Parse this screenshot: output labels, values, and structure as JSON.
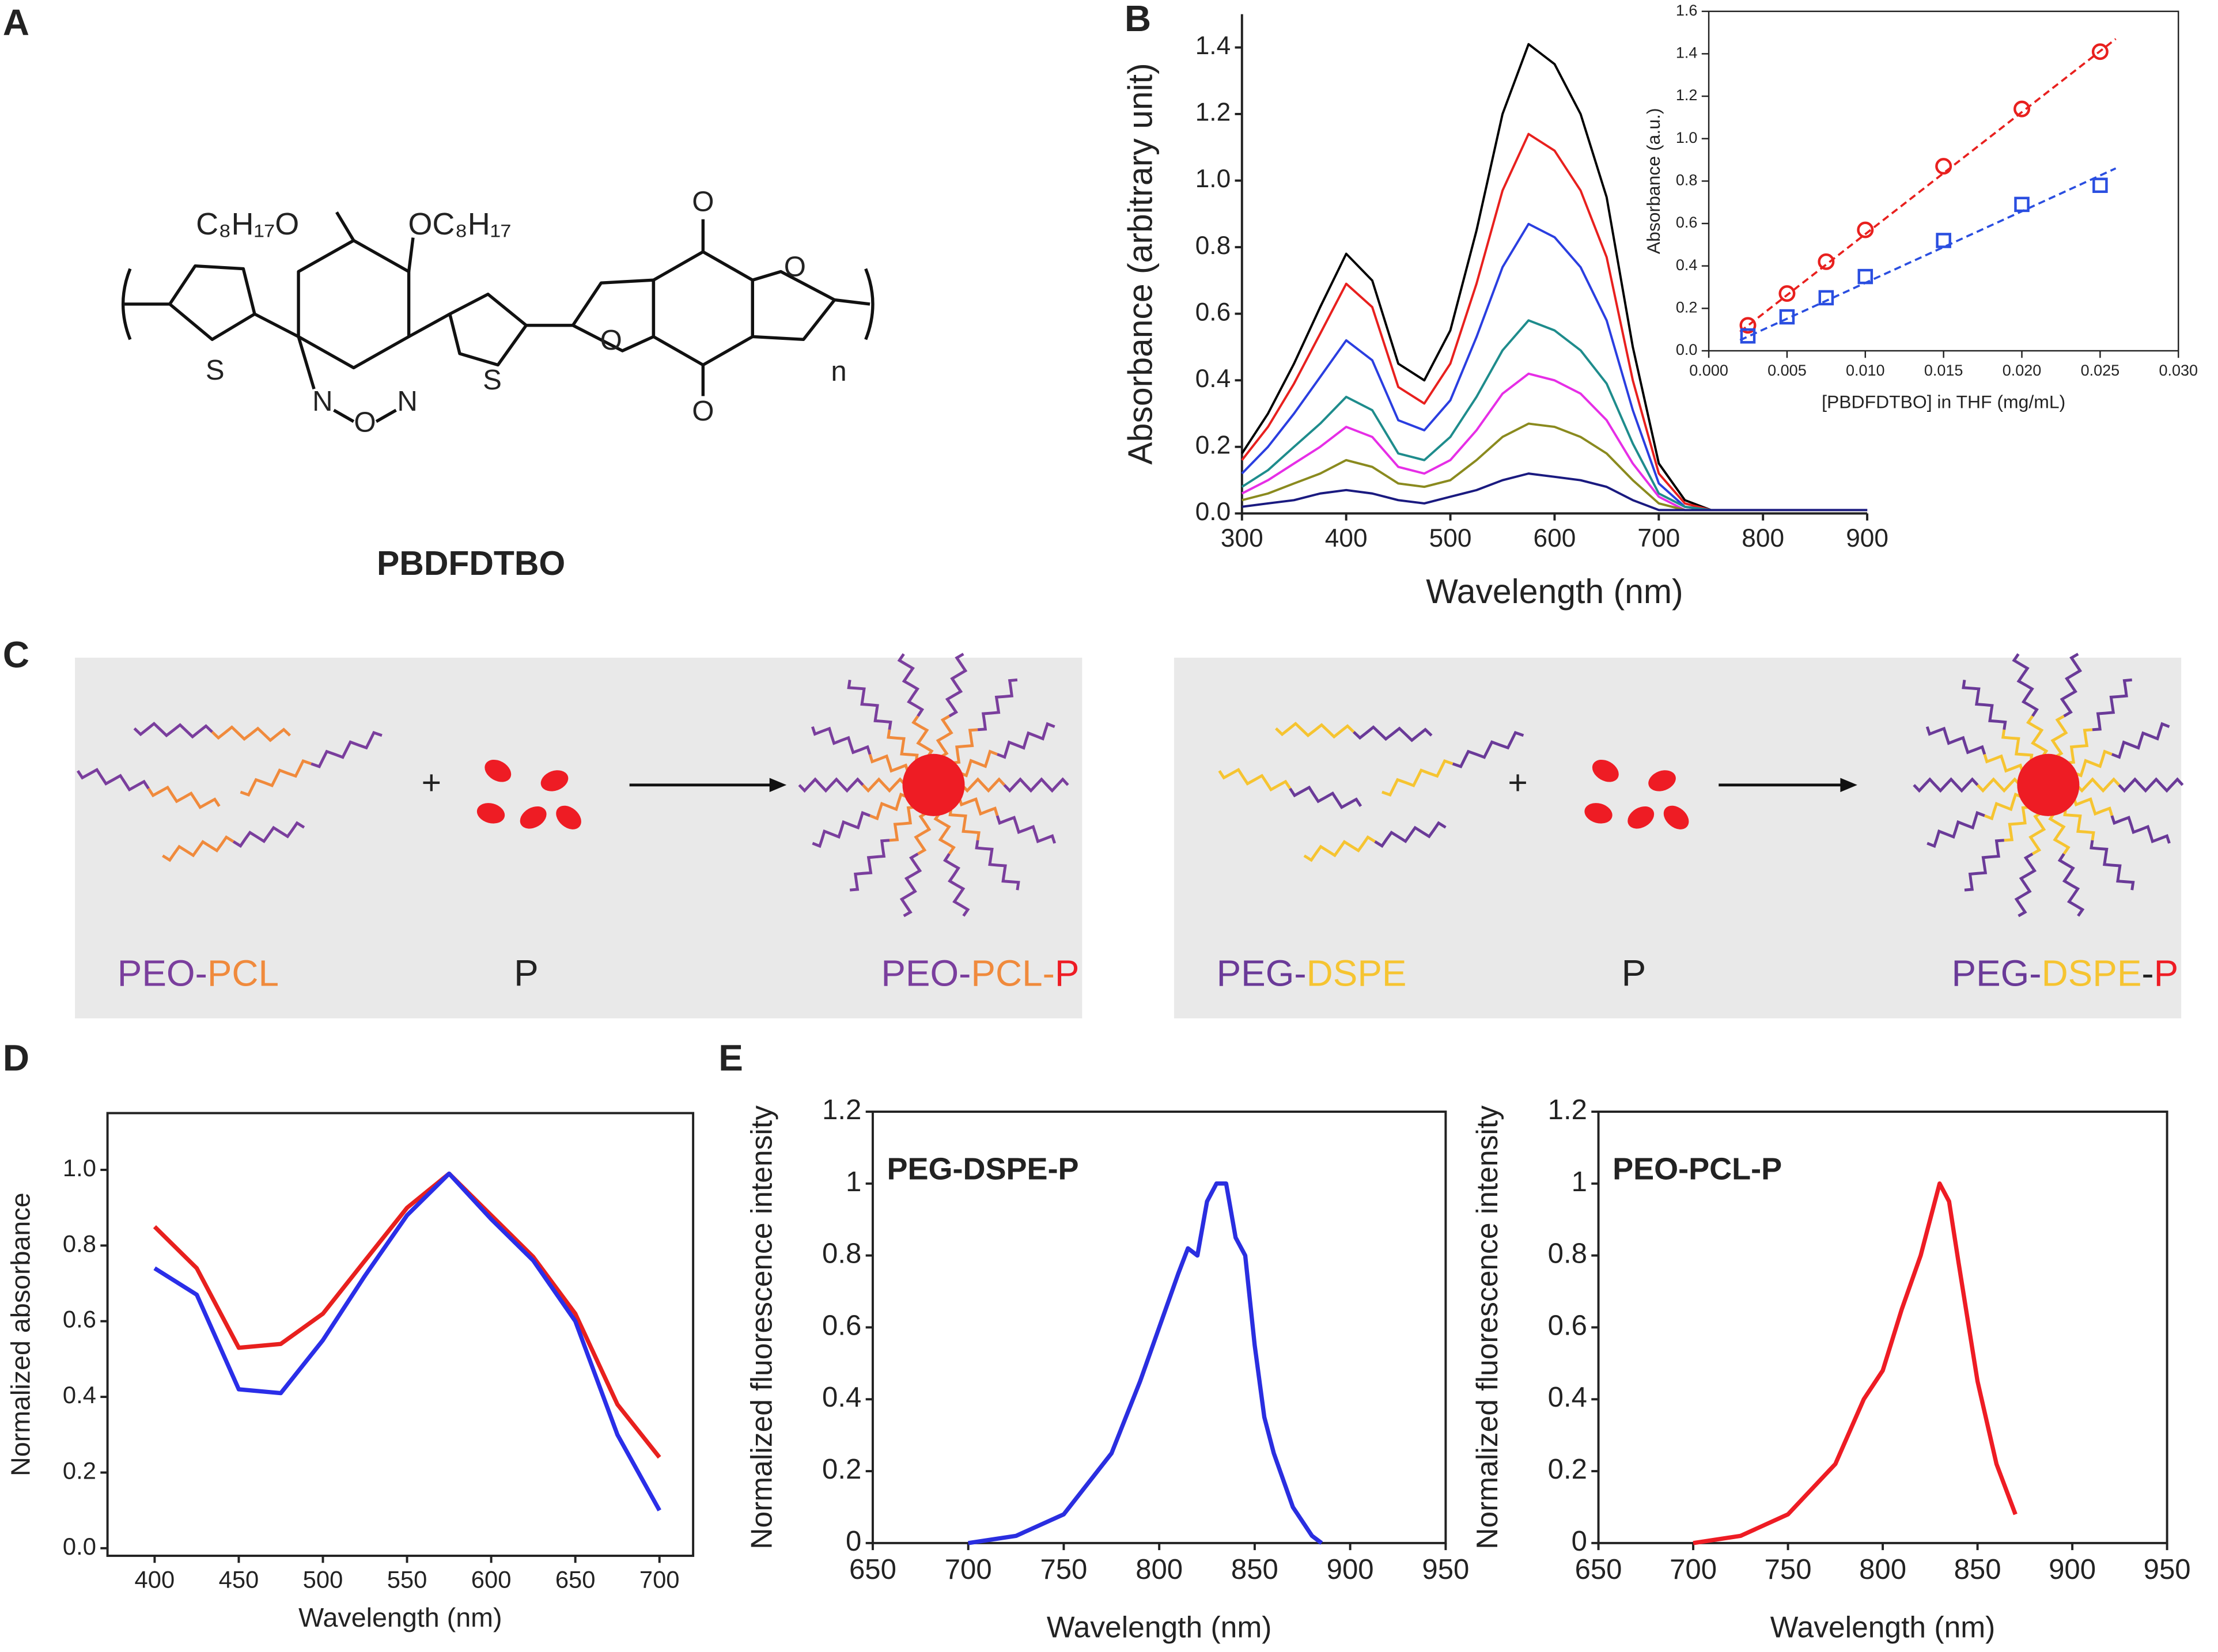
{
  "panels": [
    "A",
    "B",
    "C",
    "D",
    "E"
  ],
  "structure": {
    "name": "PBDFDTBO",
    "atoms": [
      "C₈H₁₇O",
      "OC₈H₁₇",
      "S",
      "N",
      "O",
      "N",
      "S",
      "O",
      "O",
      "O",
      "O",
      "n"
    ]
  },
  "scheme": [
    {
      "reactant": [
        {
          "text": "PEO",
          "color": "#7a3e9d"
        },
        {
          "text": "-",
          "color": "#7a3e9d"
        },
        {
          "text": "PCL",
          "color": "#f08a3c"
        }
      ],
      "plus": "+",
      "cargo": {
        "text": "P",
        "color": "#ee1c24"
      },
      "product": [
        {
          "text": "PEO",
          "color": "#7a3e9d"
        },
        {
          "text": "-",
          "color": "#7a3e9d"
        },
        {
          "text": "PCL",
          "color": "#f08a3c"
        },
        {
          "text": "-",
          "color": "#f08a3c"
        },
        {
          "text": "P",
          "color": "#ee1c24"
        }
      ]
    },
    {
      "reactant": [
        {
          "text": "PEG",
          "color": "#6a3a98"
        },
        {
          "text": "-",
          "color": "#6a3a98"
        },
        {
          "text": "DSPE",
          "color": "#f6c431"
        }
      ],
      "plus": "+",
      "cargo": {
        "text": "P",
        "color": "#ee1c24"
      },
      "product": [
        {
          "text": "PEG",
          "color": "#6a3a98"
        },
        {
          "text": "-",
          "color": "#6a3a98"
        },
        {
          "text": "DSPE",
          "color": "#f6c431"
        },
        {
          "text": "-",
          "color": "#222222"
        },
        {
          "text": "P",
          "color": "#ee1c24"
        }
      ]
    }
  ],
  "chart_data": [
    {
      "type": "line",
      "xlabel": "Wavelength (nm)",
      "ylabel": "Absorbance (arbitrary unit)",
      "x": [
        300,
        325,
        350,
        375,
        400,
        425,
        450,
        475,
        500,
        525,
        550,
        575,
        600,
        625,
        650,
        675,
        700,
        725,
        750,
        800,
        900
      ],
      "series": [
        {
          "color": "#000000",
          "values": [
            0.18,
            0.3,
            0.45,
            0.62,
            0.78,
            0.7,
            0.45,
            0.4,
            0.55,
            0.85,
            1.2,
            1.41,
            1.35,
            1.2,
            0.95,
            0.5,
            0.15,
            0.04,
            0.01,
            0.01,
            0.01
          ]
        },
        {
          "color": "#e8201e",
          "values": [
            0.16,
            0.26,
            0.39,
            0.54,
            0.69,
            0.62,
            0.38,
            0.33,
            0.45,
            0.69,
            0.97,
            1.14,
            1.09,
            0.97,
            0.77,
            0.4,
            0.12,
            0.03,
            0.01,
            0.01,
            0.01
          ]
        },
        {
          "color": "#2a3ee0",
          "values": [
            0.12,
            0.2,
            0.3,
            0.41,
            0.52,
            0.46,
            0.28,
            0.25,
            0.34,
            0.53,
            0.74,
            0.87,
            0.83,
            0.74,
            0.58,
            0.31,
            0.09,
            0.02,
            0.01,
            0.01,
            0.01
          ]
        },
        {
          "color": "#1e8c8c",
          "values": [
            0.08,
            0.13,
            0.2,
            0.27,
            0.35,
            0.31,
            0.18,
            0.16,
            0.23,
            0.35,
            0.49,
            0.58,
            0.55,
            0.49,
            0.39,
            0.21,
            0.06,
            0.02,
            0.01,
            0.01,
            0.01
          ]
        },
        {
          "color": "#e62ee6",
          "values": [
            0.06,
            0.1,
            0.15,
            0.2,
            0.26,
            0.23,
            0.14,
            0.12,
            0.16,
            0.25,
            0.36,
            0.42,
            0.4,
            0.36,
            0.28,
            0.15,
            0.05,
            0.01,
            0.01,
            0.01,
            0.01
          ]
        },
        {
          "color": "#8a8a1e",
          "values": [
            0.04,
            0.06,
            0.09,
            0.12,
            0.16,
            0.14,
            0.09,
            0.08,
            0.1,
            0.16,
            0.23,
            0.27,
            0.26,
            0.23,
            0.18,
            0.1,
            0.03,
            0.01,
            0.01,
            0.01,
            0.01
          ]
        },
        {
          "color": "#1a1a80",
          "values": [
            0.02,
            0.03,
            0.04,
            0.06,
            0.07,
            0.06,
            0.04,
            0.03,
            0.05,
            0.07,
            0.1,
            0.12,
            0.11,
            0.1,
            0.08,
            0.04,
            0.01,
            0.01,
            0.01,
            0.01,
            0.01
          ]
        }
      ],
      "xlim": [
        300,
        900
      ],
      "ylim": [
        0,
        1.5
      ],
      "xticks": [
        300,
        400,
        500,
        600,
        700,
        800,
        900
      ],
      "yticks": [
        {
          "value": 0,
          "label": "0.0"
        },
        0.2,
        0.4,
        0.6,
        0.8,
        {
          "value": 1,
          "label": "1.0"
        },
        1.2,
        1.4
      ],
      "frame": false
    },
    {
      "type": "scatter",
      "xlabel": "[PBDFDTBO] in THF (mg/mL)",
      "ylabel": "Absorbance (a.u.)",
      "series": [
        {
          "color": "#e8201e",
          "marker": "circle",
          "x": [
            0.0025,
            0.005,
            0.0075,
            0.01,
            0.015,
            0.02,
            0.025
          ],
          "values": [
            0.12,
            0.27,
            0.42,
            0.57,
            0.87,
            1.14,
            1.41
          ],
          "fit": {
            "x": [
              0.002,
              0.026
            ],
            "y": [
              0.09,
              1.47
            ]
          }
        },
        {
          "color": "#2a4ee0",
          "marker": "square",
          "x": [
            0.0025,
            0.005,
            0.0075,
            0.01,
            0.015,
            0.02,
            0.025
          ],
          "values": [
            0.07,
            0.16,
            0.25,
            0.35,
            0.52,
            0.69,
            0.78
          ],
          "fit": {
            "x": [
              0.002,
              0.026
            ],
            "y": [
              0.05,
              0.86
            ]
          }
        }
      ],
      "xlim": [
        0,
        0.03
      ],
      "ylim": [
        0,
        1.6
      ],
      "xticks": [
        {
          "value": 0,
          "label": "0.000"
        },
        {
          "value": 0.005,
          "label": "0.005"
        },
        {
          "value": 0.01,
          "label": "0.010"
        },
        {
          "value": 0.015,
          "label": "0.015"
        },
        {
          "value": 0.02,
          "label": "0.020"
        },
        {
          "value": 0.025,
          "label": "0.025"
        },
        {
          "value": 0.03,
          "label": "0.030"
        }
      ],
      "yticks": [
        {
          "value": 0,
          "label": "0.0"
        },
        0.2,
        0.4,
        0.6,
        0.8,
        {
          "value": 1,
          "label": "1.0"
        },
        1.2,
        1.4,
        1.6
      ],
      "frame": true
    },
    {
      "type": "line",
      "xlabel": "Wavelength (nm)",
      "ylabel": "Normalized absorbance",
      "x": [
        400,
        425,
        450,
        475,
        500,
        525,
        550,
        575,
        600,
        625,
        650,
        675,
        700
      ],
      "series": [
        {
          "color": "#e8201e",
          "values": [
            0.85,
            0.74,
            0.53,
            0.54,
            0.62,
            0.76,
            0.9,
            0.99,
            0.88,
            0.77,
            0.62,
            0.38,
            0.24
          ]
        },
        {
          "color": "#2a2ee8",
          "values": [
            0.74,
            0.67,
            0.42,
            0.41,
            0.55,
            0.72,
            0.88,
            0.99,
            0.87,
            0.76,
            0.6,
            0.3,
            0.1
          ]
        }
      ],
      "xlim": [
        372,
        720
      ],
      "ylim": [
        -0.02,
        1.15
      ],
      "xticks": [
        400,
        450,
        500,
        550,
        600,
        650,
        700
      ],
      "yticks": [
        {
          "value": 0,
          "label": "0.0"
        },
        0.2,
        0.4,
        0.6,
        0.8,
        {
          "value": 1,
          "label": "1.0"
        }
      ],
      "frame": true
    },
    {
      "type": "line",
      "annotation": "PEG-DSPE-P",
      "xlabel": "Wavelength (nm)",
      "ylabel": "Normalized fluorescence intensity",
      "series": [
        {
          "color": "#2a2ee0",
          "x": [
            700,
            725,
            750,
            775,
            790,
            800,
            810,
            815,
            820,
            825,
            830,
            835,
            840,
            845,
            850,
            855,
            860,
            870,
            880,
            885
          ],
          "values": [
            0,
            0.02,
            0.08,
            0.25,
            0.45,
            0.6,
            0.75,
            0.82,
            0.8,
            0.95,
            1,
            1,
            0.85,
            0.8,
            0.55,
            0.35,
            0.25,
            0.1,
            0.02,
            0
          ]
        }
      ],
      "xlim": [
        650,
        950
      ],
      "ylim": [
        0,
        1.2
      ],
      "xticks": [
        650,
        700,
        750,
        800,
        850,
        900,
        950
      ],
      "yticks": [
        0,
        0.2,
        0.4,
        0.6,
        0.8,
        1,
        1.2
      ],
      "frame": true
    },
    {
      "type": "line",
      "annotation": "PEO-PCL-P",
      "xlabel": "Wavelength (nm)",
      "ylabel": "Normalized fluorescence intensity",
      "series": [
        {
          "color": "#ee1c24",
          "x": [
            700,
            725,
            750,
            775,
            790,
            800,
            810,
            820,
            830,
            835,
            840,
            850,
            860,
            870
          ],
          "values": [
            0,
            0.02,
            0.08,
            0.22,
            0.4,
            0.48,
            0.65,
            0.8,
            1,
            0.95,
            0.78,
            0.45,
            0.22,
            0.08
          ]
        }
      ],
      "xlim": [
        650,
        950
      ],
      "ylim": [
        0,
        1.2
      ],
      "xticks": [
        650,
        700,
        750,
        800,
        850,
        900,
        950
      ],
      "yticks": [
        0,
        0.2,
        0.4,
        0.6,
        0.8,
        1,
        1.2
      ],
      "frame": true
    }
  ]
}
